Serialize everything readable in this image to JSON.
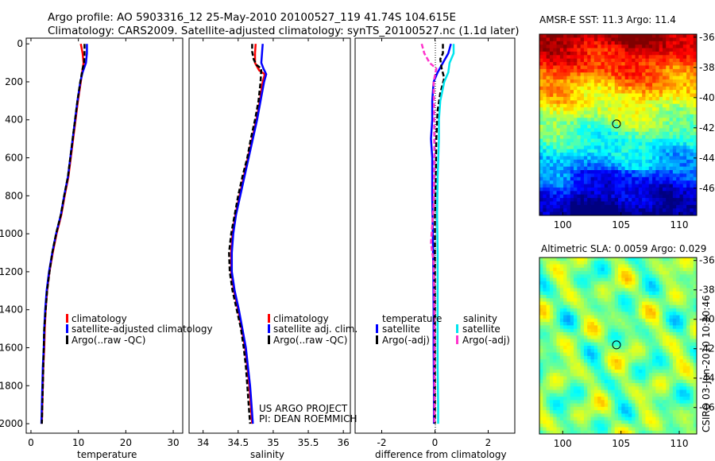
{
  "header": {
    "title_line1": "Argo profile: AO 5903316_12 25-May-2010 20100527_119 41.74S 104.615E",
    "title_line2": "Climatology: CARS2009. Satellite-adjusted climatology: synTS_20100527.nc (1.1d later)"
  },
  "credits": {
    "project_line1": "US ARGO PROJECT",
    "project_line2": "PI: DEAN ROEMMICH",
    "stamp": "CSIRO 03-Jun-2010 10:30:46"
  },
  "colors": {
    "climatology": "#ff0000",
    "satellite": "#0000ff",
    "argo": "#000000",
    "satellite_salinity": "#00e5ee",
    "argo_adj_salinity": "#ff33cc"
  },
  "chart_data": [
    {
      "type": "line",
      "id": "temperature",
      "title": "",
      "xlabel": "temperature",
      "ylabel": "",
      "xlim": [
        -1,
        32
      ],
      "ylim": [
        2050,
        -30
      ],
      "xticks": [
        "0",
        "10",
        "20",
        "30"
      ],
      "yticks": [
        "0",
        "200",
        "400",
        "600",
        "800",
        "1000",
        "1200",
        "1400",
        "1600",
        "1800",
        "2000"
      ],
      "legend": {
        "position": "lower-middle",
        "entries": [
          "climatology",
          "satellite-adjusted climatology",
          "Argo(..raw -QC)"
        ]
      },
      "series": [
        {
          "name": "climatology",
          "color": "#ff0000",
          "points": [
            [
              10.5,
              0
            ],
            [
              10.9,
              50
            ],
            [
              11.1,
              100
            ],
            [
              10.8,
              150
            ],
            [
              10.5,
              200
            ],
            [
              9.9,
              300
            ],
            [
              9.4,
              400
            ],
            [
              8.9,
              500
            ],
            [
              8.4,
              600
            ],
            [
              7.9,
              700
            ],
            [
              7.1,
              800
            ],
            [
              6.4,
              900
            ],
            [
              5.4,
              1000
            ],
            [
              4.6,
              1100
            ],
            [
              3.9,
              1200
            ],
            [
              3.4,
              1300
            ],
            [
              3.1,
              1400
            ],
            [
              2.9,
              1500
            ],
            [
              2.8,
              1600
            ],
            [
              2.6,
              1700
            ],
            [
              2.5,
              1800
            ],
            [
              2.4,
              1900
            ],
            [
              2.3,
              2000
            ]
          ]
        },
        {
          "name": "satellite-adjusted climatology",
          "color": "#0000ff",
          "points": [
            [
              11.8,
              0
            ],
            [
              11.8,
              50
            ],
            [
              11.6,
              100
            ],
            [
              10.9,
              150
            ],
            [
              10.4,
              200
            ],
            [
              9.8,
              300
            ],
            [
              9.3,
              400
            ],
            [
              8.8,
              500
            ],
            [
              8.3,
              600
            ],
            [
              7.8,
              700
            ],
            [
              7.0,
              800
            ],
            [
              6.3,
              900
            ],
            [
              5.3,
              1000
            ],
            [
              4.5,
              1100
            ],
            [
              3.8,
              1200
            ],
            [
              3.3,
              1300
            ],
            [
              3.0,
              1400
            ],
            [
              2.8,
              1500
            ],
            [
              2.7,
              1600
            ],
            [
              2.5,
              1700
            ],
            [
              2.4,
              1800
            ],
            [
              2.3,
              1900
            ],
            [
              2.2,
              2000
            ]
          ]
        },
        {
          "name": "Argo(..raw -QC)",
          "color": "#000000",
          "points": [
            [
              11.3,
              0
            ],
            [
              11.3,
              60
            ],
            [
              11.2,
              100
            ],
            [
              10.9,
              130
            ],
            [
              10.4,
              200
            ],
            [
              9.8,
              300
            ],
            [
              9.3,
              400
            ],
            [
              8.8,
              500
            ],
            [
              8.3,
              600
            ],
            [
              7.8,
              700
            ],
            [
              7.0,
              800
            ],
            [
              6.3,
              900
            ],
            [
              5.3,
              1000
            ],
            [
              4.5,
              1100
            ],
            [
              3.9,
              1200
            ],
            [
              3.4,
              1300
            ],
            [
              3.1,
              1400
            ],
            [
              2.8,
              1500
            ],
            [
              2.7,
              1600
            ],
            [
              2.6,
              1700
            ],
            [
              2.5,
              1800
            ],
            [
              2.4,
              1900
            ],
            [
              2.3,
              2000
            ]
          ]
        }
      ]
    },
    {
      "type": "line",
      "id": "salinity",
      "title": "",
      "xlabel": "salinity",
      "ylabel": "",
      "xlim": [
        33.8,
        36.1
      ],
      "ylim": [
        2050,
        -30
      ],
      "xticks": [
        "34",
        "34.5",
        "35",
        "35.5",
        "36"
      ],
      "legend": {
        "position": "lower-right",
        "entries": [
          "climatology",
          "satellite adj. clim.",
          "Argo(..raw -QC)"
        ]
      },
      "series": [
        {
          "name": "climatology",
          "color": "#ff0000",
          "points": [
            [
              34.75,
              0
            ],
            [
              34.74,
              50
            ],
            [
              34.74,
              100
            ],
            [
              34.8,
              140
            ],
            [
              34.88,
              160
            ],
            [
              34.85,
              200
            ],
            [
              34.81,
              300
            ],
            [
              34.76,
              400
            ],
            [
              34.7,
              500
            ],
            [
              34.64,
              600
            ],
            [
              34.58,
              700
            ],
            [
              34.52,
              800
            ],
            [
              34.46,
              900
            ],
            [
              34.42,
              1000
            ],
            [
              34.4,
              1100
            ],
            [
              34.4,
              1200
            ],
            [
              34.44,
              1300
            ],
            [
              34.5,
              1400
            ],
            [
              34.55,
              1500
            ],
            [
              34.6,
              1600
            ],
            [
              34.63,
              1700
            ],
            [
              34.66,
              1800
            ],
            [
              34.68,
              1900
            ],
            [
              34.7,
              2000
            ]
          ]
        },
        {
          "name": "satellite adj. clim.",
          "color": "#0000ff",
          "points": [
            [
              34.85,
              0
            ],
            [
              34.84,
              50
            ],
            [
              34.83,
              100
            ],
            [
              34.86,
              130
            ],
            [
              34.9,
              160
            ],
            [
              34.87,
              200
            ],
            [
              34.82,
              300
            ],
            [
              34.77,
              400
            ],
            [
              34.71,
              500
            ],
            [
              34.65,
              600
            ],
            [
              34.59,
              700
            ],
            [
              34.53,
              800
            ],
            [
              34.47,
              900
            ],
            [
              34.43,
              1000
            ],
            [
              34.41,
              1100
            ],
            [
              34.41,
              1200
            ],
            [
              34.45,
              1300
            ],
            [
              34.51,
              1400
            ],
            [
              34.56,
              1500
            ],
            [
              34.61,
              1600
            ],
            [
              34.64,
              1700
            ],
            [
              34.67,
              1800
            ],
            [
              34.69,
              1900
            ],
            [
              34.71,
              2000
            ]
          ]
        },
        {
          "name": "Argo(..raw -QC)",
          "color": "#000000",
          "points": [
            [
              34.7,
              0
            ],
            [
              34.7,
              40
            ],
            [
              34.72,
              80
            ],
            [
              34.76,
              110
            ],
            [
              34.83,
              130
            ],
            [
              34.82,
              200
            ],
            [
              34.79,
              300
            ],
            [
              34.74,
              400
            ],
            [
              34.68,
              500
            ],
            [
              34.63,
              600
            ],
            [
              34.56,
              700
            ],
            [
              34.5,
              800
            ],
            [
              34.45,
              900
            ],
            [
              34.4,
              1000
            ],
            [
              34.37,
              1100
            ],
            [
              34.38,
              1200
            ],
            [
              34.42,
              1300
            ],
            [
              34.48,
              1400
            ],
            [
              34.54,
              1500
            ],
            [
              34.58,
              1600
            ],
            [
              34.61,
              1700
            ],
            [
              34.63,
              1800
            ],
            [
              34.65,
              1900
            ],
            [
              34.67,
              2000
            ]
          ]
        }
      ]
    },
    {
      "type": "line",
      "id": "difference",
      "title": "",
      "xlabel": "difference from climatology",
      "ylabel": "",
      "xlim": [
        -3,
        3
      ],
      "ylim": [
        2050,
        -30
      ],
      "xticks": [
        "-2",
        "0",
        "2"
      ],
      "legend": {
        "position": "lower",
        "entries": [
          "temperature",
          "satellite",
          "Argo(-adj)",
          "salinity",
          "satellite",
          "Argo(-adj)"
        ]
      },
      "series": [
        {
          "name": "temperature satellite",
          "color": "#0000ff",
          "points": [
            [
              0.6,
              0
            ],
            [
              0.5,
              50
            ],
            [
              0.3,
              100
            ],
            [
              0.1,
              150
            ],
            [
              -0.05,
              200
            ],
            [
              -0.1,
              300
            ],
            [
              -0.1,
              400
            ],
            [
              -0.15,
              500
            ],
            [
              -0.1,
              600
            ],
            [
              -0.1,
              800
            ],
            [
              -0.08,
              1000
            ],
            [
              -0.06,
              1200
            ],
            [
              -0.05,
              1400
            ],
            [
              -0.05,
              1600
            ],
            [
              -0.04,
              1800
            ],
            [
              -0.04,
              2000
            ]
          ]
        },
        {
          "name": "temperature Argo(-adj)",
          "color": "#000000",
          "points": [
            [
              0.3,
              0
            ],
            [
              0.3,
              50
            ],
            [
              0.2,
              80
            ],
            [
              0.25,
              130
            ],
            [
              0.35,
              180
            ],
            [
              0.2,
              260
            ],
            [
              0.1,
              350
            ],
            [
              0.05,
              500
            ],
            [
              0.03,
              700
            ],
            [
              0.0,
              900
            ],
            [
              0.0,
              1100
            ],
            [
              0.0,
              1300
            ],
            [
              0.0,
              1500
            ],
            [
              0.0,
              1700
            ],
            [
              0.0,
              1900
            ],
            [
              0.0,
              2000
            ]
          ]
        },
        {
          "name": "salinity satellite",
          "color": "#00e5ee",
          "points": [
            [
              0.7,
              0
            ],
            [
              0.7,
              50
            ],
            [
              0.55,
              100
            ],
            [
              0.5,
              150
            ],
            [
              0.35,
              200
            ],
            [
              0.2,
              300
            ],
            [
              0.15,
              400
            ],
            [
              0.15,
              500
            ],
            [
              0.1,
              700
            ],
            [
              0.08,
              900
            ],
            [
              0.1,
              1100
            ],
            [
              0.1,
              1300
            ],
            [
              0.1,
              1500
            ],
            [
              0.1,
              1700
            ],
            [
              0.12,
              1900
            ],
            [
              0.12,
              2000
            ]
          ]
        },
        {
          "name": "salinity Argo(-adj)",
          "color": "#ff33cc",
          "points": [
            [
              -0.5,
              0
            ],
            [
              -0.4,
              50
            ],
            [
              -0.2,
              100
            ],
            [
              0.05,
              130
            ],
            [
              -0.05,
              200
            ],
            [
              -0.03,
              400
            ],
            [
              -0.02,
              600
            ],
            [
              -0.05,
              850
            ],
            [
              -0.15,
              1050
            ],
            [
              -0.05,
              1150
            ],
            [
              -0.03,
              1300
            ],
            [
              -0.02,
              1500
            ],
            [
              -0.02,
              1700
            ],
            [
              -0.02,
              1900
            ],
            [
              -0.02,
              2000
            ]
          ]
        }
      ]
    },
    {
      "type": "heatmap",
      "id": "sst",
      "title": "AMSR-E SST: 11.3 Argo: 11.4",
      "xlabel": "",
      "ylabel": "",
      "xlim": [
        98,
        111.5
      ],
      "ylim": [
        -47.8,
        -35.8
      ],
      "xticks": [
        "100",
        "105",
        "110"
      ],
      "yticks": [
        "-36",
        "-38",
        "-40",
        "-42",
        "-44",
        "-46"
      ],
      "marker": [
        104.615,
        -41.74
      ],
      "value_range": [
        8,
        17
      ]
    },
    {
      "type": "heatmap",
      "id": "sla",
      "title": "Altimetric SLA: 0.0059 Argo: 0.029",
      "xlabel": "",
      "ylabel": "",
      "xlim": [
        98,
        111.5
      ],
      "ylim": [
        -47.8,
        -35.8
      ],
      "xticks": [
        "100",
        "105",
        "110"
      ],
      "yticks": [
        "-36",
        "-38",
        "-40",
        "-42",
        "-44",
        "-46"
      ],
      "marker": [
        104.615,
        -41.74
      ]
    }
  ]
}
